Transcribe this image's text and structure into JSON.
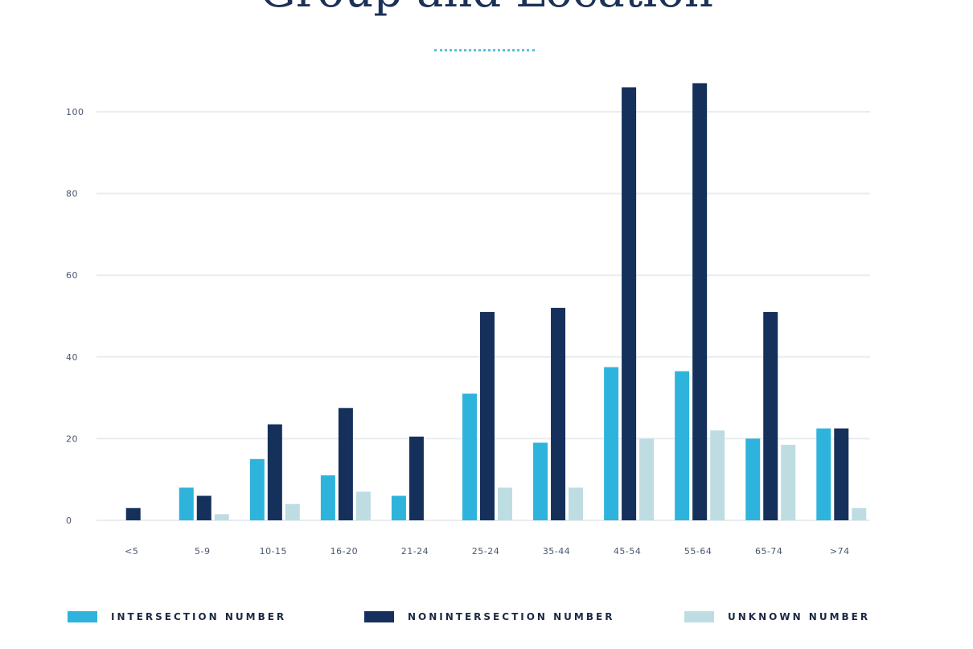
{
  "chart_data": {
    "type": "bar",
    "title": "Group and Location",
    "categories": [
      "<5",
      "5-9",
      "10-15",
      "16-20",
      "21-24",
      "25-24",
      "35-44",
      "45-54",
      "55-64",
      "65-74",
      ">74"
    ],
    "series": [
      {
        "name": "INTERSECTION NUMBER",
        "color": "#2eb4dc",
        "values": [
          0,
          8,
          15,
          11,
          6,
          31,
          19,
          37.5,
          36.5,
          20,
          22.5
        ]
      },
      {
        "name": "NONINTERSECTION NUMBER",
        "color": "#15305a",
        "values": [
          3,
          6,
          23.5,
          27.5,
          20.5,
          51,
          52,
          106,
          107,
          51,
          22.5
        ]
      },
      {
        "name": "UNKNOWN NUMBER",
        "color": "#bddde3",
        "values": [
          0,
          1.5,
          4,
          7,
          0,
          8,
          8,
          20,
          22,
          18.5,
          3
        ]
      }
    ],
    "yticks": [
      0,
      20,
      40,
      60,
      80,
      100
    ],
    "ylim": [
      0,
      110
    ],
    "xlabel": "",
    "ylabel": "",
    "grid": true,
    "legend_position": "bottom"
  }
}
